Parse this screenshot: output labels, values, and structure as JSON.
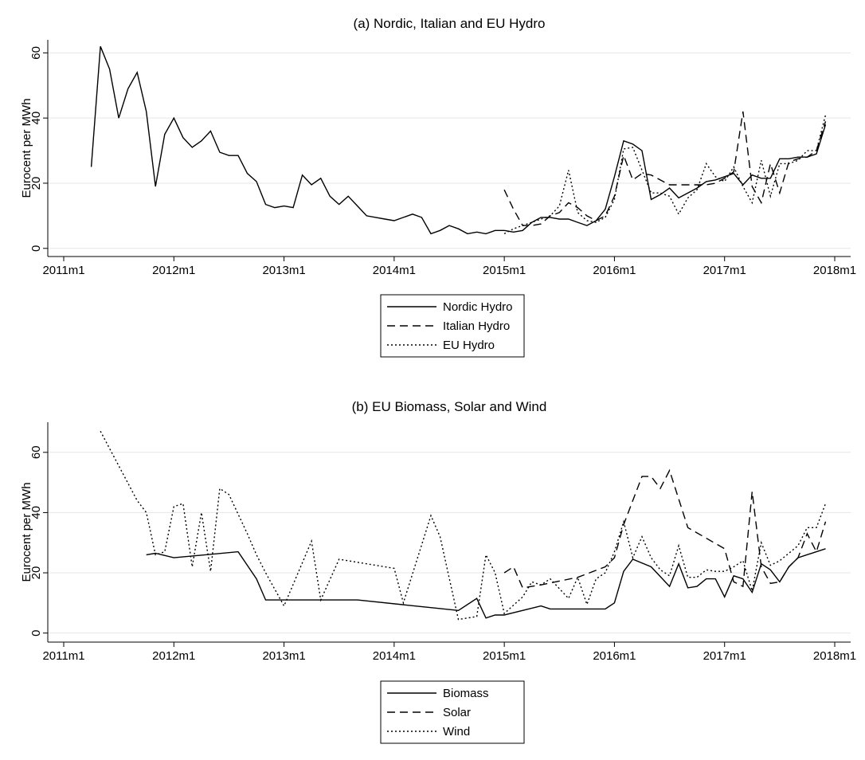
{
  "chart_data": [
    {
      "type": "line",
      "title": "(a) Nordic, Italian and EU Hydro",
      "y_label": "Eurocent per MWh",
      "xlim": [
        "2011m1",
        "2018m1"
      ],
      "xticks": [
        "2011m1",
        "2012m1",
        "2013m1",
        "2014m1",
        "2015m1",
        "2016m1",
        "2017m1",
        "2018m1"
      ],
      "ylim": [
        -2.5,
        64
      ],
      "yticks": [
        0,
        20,
        40,
        60
      ],
      "grid": true,
      "legend": "bottom",
      "series": [
        {
          "name": "Nordic Hydro",
          "color": "#000000",
          "dash": "solid",
          "x": [
            "2011m4",
            "2011m5",
            "2011m6",
            "2011m7",
            "2011m8",
            "2011m9",
            "2011m10",
            "2011m11",
            "2011m12",
            "2012m1",
            "2012m2",
            "2012m3",
            "2012m4",
            "2012m5",
            "2012m6",
            "2012m7",
            "2012m8",
            "2012m9",
            "2012m10",
            "2012m11",
            "2012m12",
            "2013m1",
            "2013m2",
            "2013m3",
            "2013m4",
            "2013m5",
            "2013m6",
            "2013m7",
            "2013m8",
            "2013m9",
            "2013m10",
            "2013m11",
            "2013m12",
            "2014m1",
            "2014m2",
            "2014m3",
            "2014m4",
            "2014m5",
            "2014m6",
            "2014m7",
            "2014m8",
            "2014m9",
            "2014m10",
            "2014m11",
            "2014m12",
            "2015m1",
            "2015m2",
            "2015m3",
            "2015m4",
            "2015m5",
            "2015m6",
            "2015m7",
            "2015m8",
            "2015m9",
            "2015m10",
            "2015m11",
            "2015m12",
            "2016m1",
            "2016m2",
            "2016m3",
            "2016m4",
            "2016m5",
            "2016m6",
            "2016m7",
            "2016m8",
            "2016m9",
            "2016m10",
            "2016m11",
            "2016m12",
            "2017m1",
            "2017m2",
            "2017m3",
            "2017m4",
            "2017m5",
            "2017m6",
            "2017m7",
            "2017m8",
            "2017m9",
            "2017m10",
            "2017m11",
            "2017m12"
          ],
          "values": [
            25,
            62,
            55,
            40,
            49,
            54,
            42,
            19,
            35,
            40,
            34,
            31,
            33,
            36,
            29.5,
            28.5,
            28.5,
            23,
            20.5,
            13.5,
            12.5,
            13,
            12.5,
            22.5,
            19.5,
            21.5,
            16,
            13.5,
            16,
            13,
            10,
            9.5,
            9,
            8.5,
            9.5,
            10.5,
            9.5,
            4.5,
            5.5,
            7,
            6,
            4.5,
            5,
            4.5,
            5.5,
            5.5,
            5,
            5.5,
            8,
            9.5,
            9.5,
            9,
            9,
            8,
            7,
            8.5,
            12,
            22,
            33,
            32,
            30,
            15,
            16.5,
            18.5,
            15.5,
            17,
            18.5,
            20.5,
            21,
            22,
            23,
            19.5,
            22.5,
            21.5,
            21.5,
            27.5,
            27.5,
            28,
            28,
            29,
            38
          ]
        },
        {
          "name": "Italian Hydro",
          "color": "#000000",
          "dash": "dashed",
          "x": [
            "2015m1",
            "2015m2",
            "2015m3",
            "2015m4",
            "2015m5",
            "2015m6",
            "2015m7",
            "2015m8",
            "2015m9",
            "2015m10",
            "2015m11",
            "2015m12",
            "2016m1",
            "2016m2",
            "2016m3",
            "2016m4",
            "2016m5",
            "2016m6",
            "2016m7",
            "2016m8",
            "2016m9",
            "2016m10",
            "2016m11",
            "2016m12",
            "2017m1",
            "2017m2",
            "2017m3",
            "2017m4",
            "2017m5",
            "2017m6",
            "2017m7",
            "2017m8",
            "2017m9",
            "2017m10",
            "2017m11",
            "2017m12"
          ],
          "values": [
            18,
            12,
            7,
            7,
            7.5,
            10,
            11,
            14,
            12.5,
            10,
            8.5,
            10,
            16,
            28.5,
            21,
            23,
            22.5,
            21,
            19.5,
            19.5,
            19.5,
            19.5,
            19.5,
            20,
            21.5,
            23.5,
            42,
            19,
            14,
            26,
            17,
            26.5,
            27.5,
            28,
            30,
            39
          ]
        },
        {
          "name": "EU Hydro",
          "color": "#000000",
          "dash": "dotted",
          "x": [
            "2015m1",
            "2015m2",
            "2015m3",
            "2015m4",
            "2015m5",
            "2015m6",
            "2015m7",
            "2015m8",
            "2015m9",
            "2015m10",
            "2015m11",
            "2015m12",
            "2016m1",
            "2016m2",
            "2016m3",
            "2016m4",
            "2016m5",
            "2016m6",
            "2016m7",
            "2016m8",
            "2016m9",
            "2016m10",
            "2016m11",
            "2016m12",
            "2017m1",
            "2017m2",
            "2017m3",
            "2017m4",
            "2017m5",
            "2017m6",
            "2017m7",
            "2017m8",
            "2017m9",
            "2017m10",
            "2017m11",
            "2017m12"
          ],
          "values": [
            4.5,
            6,
            7,
            8,
            9,
            10,
            13,
            24,
            11,
            8.5,
            8,
            9.5,
            15,
            30.5,
            31,
            24,
            17,
            17,
            16,
            10.5,
            15.5,
            18,
            26,
            22,
            20.5,
            25,
            19,
            14,
            27,
            16,
            26,
            26,
            27,
            30,
            30,
            41
          ]
        }
      ]
    },
    {
      "type": "line",
      "title": "(b) EU Biomass, Solar and Wind",
      "y_label": "Eurocent per MWh",
      "xlim": [
        "2011m1",
        "2018m1"
      ],
      "xticks": [
        "2011m1",
        "2012m1",
        "2013m1",
        "2014m1",
        "2015m1",
        "2016m1",
        "2017m1",
        "2018m1"
      ],
      "ylim": [
        -3,
        70
      ],
      "yticks": [
        0,
        20,
        40,
        60
      ],
      "grid": true,
      "legend": "bottom",
      "series": [
        {
          "name": "Biomass",
          "color": "#000000",
          "dash": "solid",
          "x": [
            "2011m10",
            "2011m11",
            "2012m1",
            "2012m8",
            "2012m10",
            "2012m11",
            "2013m1",
            "2013m9",
            "2014m8",
            "2014m10",
            "2014m11",
            "2014m12",
            "2015m1",
            "2015m5",
            "2015m6",
            "2015m12",
            "2016m1",
            "2016m2",
            "2016m3",
            "2016m5",
            "2016m7",
            "2016m8",
            "2016m9",
            "2016m10",
            "2016m11",
            "2016m12",
            "2017m1",
            "2017m2",
            "2017m3",
            "2017m4",
            "2017m5",
            "2017m6",
            "2017m7",
            "2017m8",
            "2017m9",
            "2017m12"
          ],
          "values": [
            26,
            26.5,
            25,
            27,
            18,
            11,
            11,
            11,
            7.5,
            11.5,
            5,
            6,
            6,
            9,
            8,
            8,
            10,
            20.5,
            24.5,
            22,
            15.5,
            23,
            15,
            15.5,
            18,
            18,
            12,
            19,
            18,
            13.5,
            23,
            21,
            17,
            22,
            25,
            28
          ]
        },
        {
          "name": "Solar",
          "color": "#000000",
          "dash": "dashed",
          "x": [
            "2015m1",
            "2015m2",
            "2015m3",
            "2015m5",
            "2015m9",
            "2015m12",
            "2016m1",
            "2016m2",
            "2016m4",
            "2016m5",
            "2016m6",
            "2016m7",
            "2016m9",
            "2017m1",
            "2017m2",
            "2017m3",
            "2017m4",
            "2017m5",
            "2017m6",
            "2017m7",
            "2017m8",
            "2017m9",
            "2017m10",
            "2017m11",
            "2017m12"
          ],
          "values": [
            20,
            22,
            15,
            16,
            18.5,
            22,
            25,
            36,
            52,
            52,
            48,
            54,
            35,
            28,
            17,
            15.5,
            47,
            22,
            16.5,
            17,
            22,
            25,
            33,
            27,
            37
          ]
        },
        {
          "name": "Wind",
          "color": "#000000",
          "dash": "dotted",
          "x": [
            "2011m5",
            "2011m9",
            "2011m10",
            "2011m11",
            "2011m12",
            "2012m1",
            "2012m2",
            "2012m3",
            "2012m4",
            "2012m5",
            "2012m6",
            "2012m7",
            "2012m9",
            "2012m10",
            "2012m11",
            "2013m1",
            "2013m4",
            "2013m5",
            "2013m7",
            "2014m1",
            "2014m2",
            "2014m5",
            "2014m6",
            "2014m8",
            "2014m10",
            "2014m11",
            "2014m12",
            "2015m1",
            "2015m3",
            "2015m4",
            "2015m5",
            "2015m6",
            "2015m8",
            "2015m9",
            "2015m10",
            "2015m11",
            "2015m12",
            "2016m1",
            "2016m2",
            "2016m3",
            "2016m4",
            "2016m5",
            "2016m6",
            "2016m7",
            "2016m8",
            "2016m9",
            "2016m10",
            "2016m11",
            "2016m12",
            "2017m1",
            "2017m2",
            "2017m3",
            "2017m4",
            "2017m5",
            "2017m6",
            "2017m7",
            "2017m9",
            "2017m10",
            "2017m11",
            "2017m12"
          ],
          "values": [
            67,
            44,
            40,
            26,
            27,
            42,
            43,
            22,
            40,
            20.5,
            48,
            46,
            33,
            26,
            20,
            9,
            30.5,
            11,
            24.5,
            21.5,
            10,
            39,
            32,
            4.5,
            5.5,
            26,
            20,
            6.5,
            12,
            17,
            16,
            18,
            11.5,
            18.5,
            9.5,
            18,
            20,
            27,
            37,
            25,
            32,
            25,
            21,
            19,
            29,
            18.5,
            18.5,
            21,
            20.5,
            20.5,
            22,
            24,
            14,
            30,
            22.5,
            24,
            29,
            35,
            35,
            43
          ]
        }
      ]
    }
  ]
}
